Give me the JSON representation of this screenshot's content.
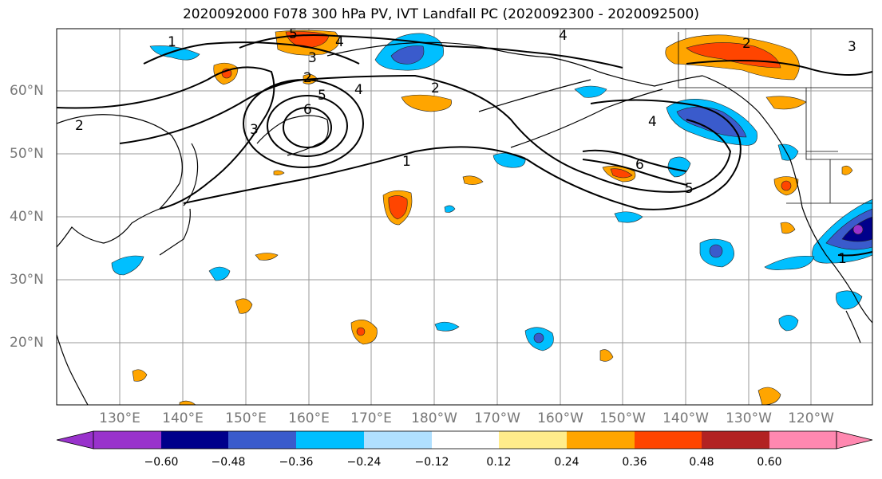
{
  "title": "2020092000 F078 300 hPa PV, IVT Landfall PC (2020092300 - 2020092500)",
  "lat_labels": [
    "60°N",
    "50°N",
    "40°N",
    "30°N",
    "20°N"
  ],
  "lon_labels": [
    "130°E",
    "140°E",
    "150°E",
    "160°E",
    "170°E",
    "180°W",
    "170°W",
    "160°W",
    "150°W",
    "140°W",
    "130°W",
    "120°W"
  ],
  "colorbar": {
    "colors": [
      "#9932cc",
      "#00008b",
      "#3a5bcc",
      "#00bfff",
      "#b0e0ff",
      "#ffffff",
      "#ffffff",
      "#ffec8b",
      "#ffa500",
      "#ff4500",
      "#b22222",
      "#ff88b0"
    ],
    "tick_labels": [
      "−0.60",
      "−0.48",
      "−0.36",
      "−0.24",
      "−0.12",
      "0.12",
      "0.24",
      "0.36",
      "0.48",
      "0.60"
    ]
  },
  "contour_labels": [
    "1",
    "2",
    "3",
    "4",
    "5",
    "6",
    "1",
    "2",
    "3",
    "4",
    "5",
    "6",
    "2",
    "4",
    "1",
    "2",
    "3",
    "4",
    "5",
    "6"
  ]
}
